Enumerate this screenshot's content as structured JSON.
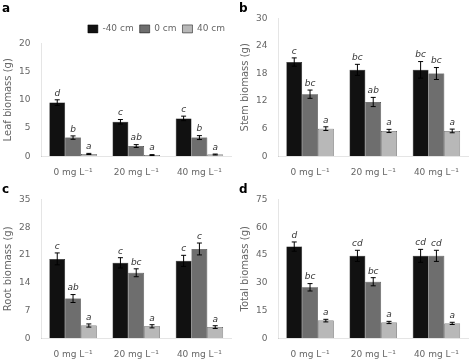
{
  "chart_data": [
    {
      "type": "bar",
      "title": "a",
      "ylabel": "Leaf biomass (g)",
      "categories": [
        "0 mg L⁻¹",
        "20 mg L⁻¹",
        "40 mg L⁻¹"
      ],
      "series": [
        {
          "name": "-40 cm",
          "color": "#111111",
          "values": [
            9.5,
            6.1,
            6.7
          ],
          "errors": [
            0.5,
            0.4,
            0.4
          ],
          "letters": [
            "d",
            "c",
            "c"
          ]
        },
        {
          "name": "0 cm",
          "color": "#6e6e6e",
          "values": [
            3.3,
            1.8,
            3.3
          ],
          "errors": [
            0.3,
            0.25,
            0.35
          ],
          "letters": [
            "b",
            "ab",
            "b"
          ]
        },
        {
          "name": "40 cm",
          "color": "#b8b8b8",
          "values": [
            0.4,
            0.2,
            0.3
          ],
          "errors": [
            0.1,
            0.08,
            0.08
          ],
          "letters": [
            "a",
            "a",
            "a"
          ]
        }
      ],
      "ylim": [
        0,
        20
      ],
      "yticks": [
        0,
        5,
        10,
        15,
        20
      ],
      "grid": false,
      "legend": "upper right"
    },
    {
      "type": "bar",
      "title": "b",
      "ylabel": "Stem biomass (g)",
      "categories": [
        "0 mg L⁻¹",
        "20 mg L⁻¹",
        "40 mg L⁻¹"
      ],
      "series": [
        {
          "color": "#111111",
          "values": [
            20.5,
            18.8,
            18.8
          ],
          "errors": [
            0.9,
            1.2,
            1.8
          ],
          "letters": [
            "c",
            "bc",
            "bc"
          ]
        },
        {
          "color": "#6e6e6e",
          "values": [
            13.5,
            11.8,
            18.0
          ],
          "errors": [
            0.9,
            1.0,
            1.3
          ],
          "letters": [
            "bc",
            "ab",
            "bc"
          ]
        },
        {
          "color": "#b8b8b8",
          "values": [
            6.0,
            5.5,
            5.5
          ],
          "errors": [
            0.4,
            0.35,
            0.4
          ],
          "letters": [
            "a",
            "a",
            "a"
          ]
        }
      ],
      "ylim": [
        0,
        30
      ],
      "yticks": [
        0,
        6,
        12,
        18,
        24,
        30
      ],
      "grid": false
    },
    {
      "type": "bar",
      "title": "c",
      "ylabel": "Root biomass (g)",
      "categories": [
        "0 mg L⁻¹",
        "20 mg L⁻¹",
        "40 mg L⁻¹"
      ],
      "series": [
        {
          "color": "#111111",
          "values": [
            20.0,
            19.0,
            19.5
          ],
          "errors": [
            1.5,
            1.3,
            1.4
          ],
          "letters": [
            "c",
            "c",
            "c"
          ]
        },
        {
          "color": "#6e6e6e",
          "values": [
            10.0,
            16.5,
            22.5
          ],
          "errors": [
            1.0,
            1.0,
            1.5
          ],
          "letters": [
            "ab",
            "bc",
            "c"
          ]
        },
        {
          "color": "#b8b8b8",
          "values": [
            3.2,
            3.0,
            2.8
          ],
          "errors": [
            0.4,
            0.4,
            0.35
          ],
          "letters": [
            "a",
            "a",
            "a"
          ]
        }
      ],
      "ylim": [
        0,
        35
      ],
      "yticks": [
        0,
        7,
        14,
        21,
        28,
        35
      ],
      "grid": false
    },
    {
      "type": "bar",
      "title": "d",
      "ylabel": "Total biomass (g)",
      "categories": [
        "0 mg L⁻¹",
        "20 mg L⁻¹",
        "40 mg L⁻¹"
      ],
      "series": [
        {
          "color": "#111111",
          "values": [
            49.5,
            44.5,
            44.5
          ],
          "errors": [
            2.5,
            3.0,
            3.5
          ],
          "letters": [
            "d",
            "cd",
            "cd"
          ]
        },
        {
          "color": "#6e6e6e",
          "values": [
            27.5,
            30.5,
            44.5
          ],
          "errors": [
            2.0,
            2.2,
            3.0
          ],
          "letters": [
            "bc",
            "bc",
            "cd"
          ]
        },
        {
          "color": "#b8b8b8",
          "values": [
            9.5,
            8.5,
            8.0
          ],
          "errors": [
            0.7,
            0.6,
            0.6
          ],
          "letters": [
            "a",
            "a",
            "a"
          ]
        }
      ],
      "ylim": [
        0,
        75
      ],
      "yticks": [
        0,
        15,
        30,
        45,
        60,
        75
      ],
      "grid": false
    }
  ]
}
